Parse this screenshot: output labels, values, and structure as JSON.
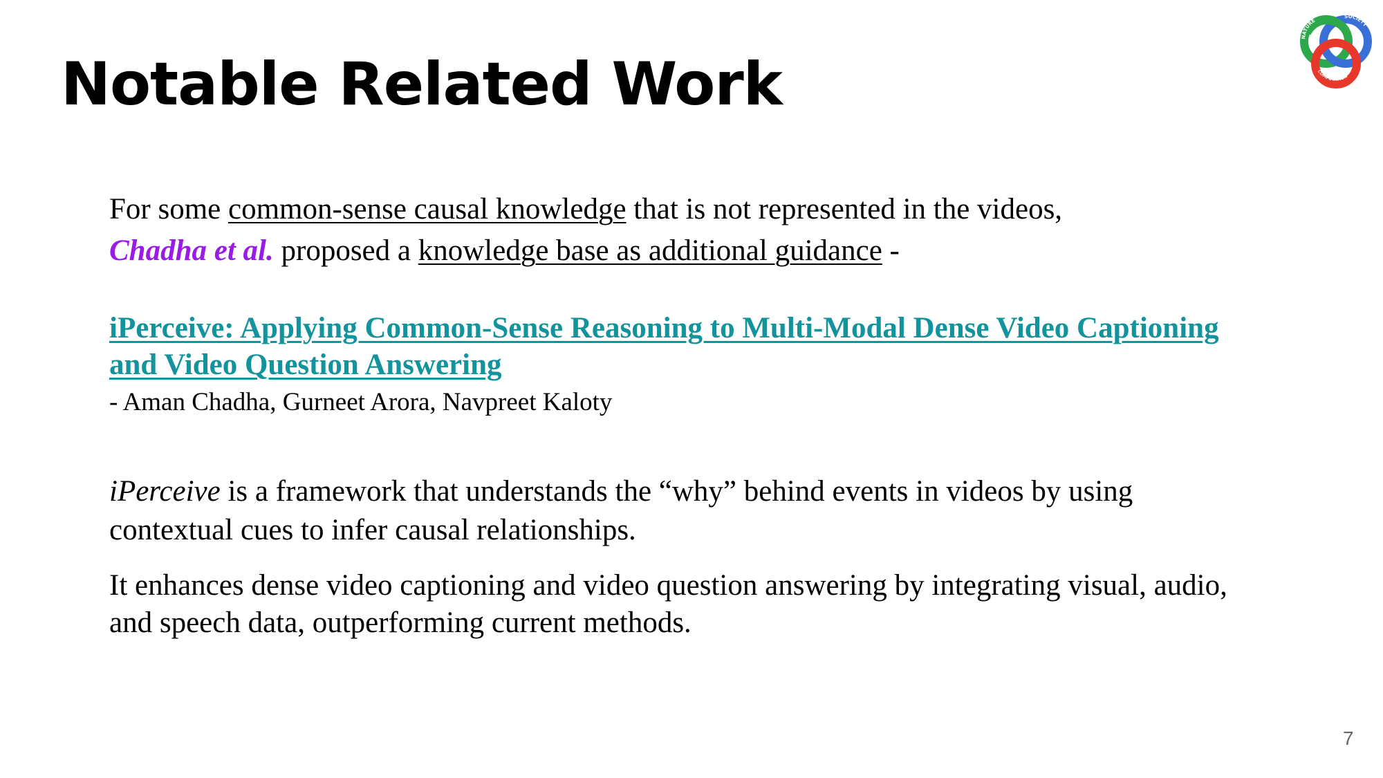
{
  "slide": {
    "title": "Notable Related Work",
    "page_number": "7"
  },
  "logo": {
    "icon": "nature-society-computation-logo",
    "text_top_left": "NATURE",
    "text_top_right": "SOCIETY",
    "text_bottom": "COMPUTATION",
    "colors": {
      "green": "#2da84a",
      "blue": "#3b6fd8",
      "red": "#e8382c"
    }
  },
  "intro": {
    "line1_start": "For some ",
    "line1_underlined": "common-sense causal knowledge",
    "line1_end": " that is not represented in the videos,",
    "line2_author": "Chadha et al.",
    "line2_middle": " proposed a ",
    "line2_underlined": "knowledge base as additional guidance",
    "line2_end": " -"
  },
  "paper": {
    "title_line1": "iPerceive: Applying Common-Sense Reasoning to Multi-Modal Dense Video Captioning",
    "title_line2": "and Video Question Answering",
    "authors": "- Aman Chadha, Gurneet Arora, Navpreet Kaloty"
  },
  "description": {
    "p1_italic": "iPerceive",
    "p1_line1_rest": " is a framework that understands the “why” behind events in videos by using",
    "p1_line2": "contextual cues to infer causal relationships.",
    "p2_line1": "It enhances dense video captioning and video question answering by integrating visual, audio,",
    "p2_line2": "and speech data, outperforming current methods."
  },
  "colors": {
    "author_highlight": "#9b1be6",
    "link": "#13939c"
  }
}
